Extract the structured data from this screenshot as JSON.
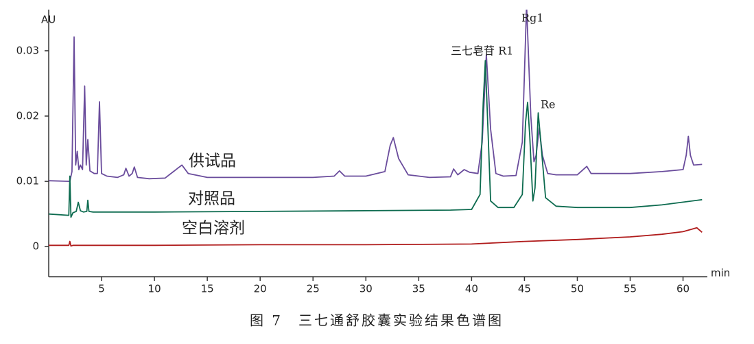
{
  "chart_data": {
    "type": "line",
    "caption": "图 7　三七通舒胶囊实验结果色谱图",
    "y_label": "AU",
    "x_label": "min",
    "xlim": [
      0,
      62.3
    ],
    "ylim": [
      -0.0046,
      0.0363
    ],
    "xticks": [
      5,
      10,
      15,
      20,
      25,
      30,
      35,
      40,
      45,
      50,
      55,
      60
    ],
    "yticks": [
      0,
      0.01,
      0.02,
      0.03
    ],
    "annotations": [
      "三七皂苷 R1",
      "Rg1",
      "Re"
    ],
    "series": [
      {
        "name": "供试品",
        "color": "#6a4c9c",
        "x": [
          0,
          2.0,
          2.2,
          2.4,
          2.55,
          2.7,
          2.85,
          3.0,
          3.2,
          3.4,
          3.55,
          3.7,
          3.9,
          4.3,
          4.6,
          4.8,
          5.0,
          5.5,
          6.5,
          7.1,
          7.3,
          7.6,
          7.9,
          8.1,
          8.4,
          9.5,
          11,
          12.2,
          12.6,
          13.2,
          15,
          20,
          25,
          27,
          27.5,
          28,
          30,
          31.8,
          32.3,
          32.6,
          33.1,
          34,
          36,
          38,
          38.3,
          38.7,
          39.3,
          39.8,
          40.6,
          41.0,
          41.4,
          41.8,
          42.3,
          43,
          44.2,
          44.8,
          45.2,
          45.6,
          45.9,
          46.1,
          46.4,
          46.7,
          47.2,
          48,
          50,
          50.9,
          51.3,
          55,
          58,
          60,
          60.3,
          60.5,
          60.7,
          61,
          61.8
        ],
        "values": [
          0.0101,
          0.01,
          0.0115,
          0.0321,
          0.0125,
          0.0146,
          0.0118,
          0.0125,
          0.0118,
          0.0246,
          0.0125,
          0.0164,
          0.0116,
          0.0112,
          0.0112,
          0.0222,
          0.0112,
          0.0108,
          0.0106,
          0.011,
          0.012,
          0.0108,
          0.0112,
          0.0122,
          0.0106,
          0.0104,
          0.0105,
          0.012,
          0.0125,
          0.0112,
          0.0106,
          0.0106,
          0.0106,
          0.0108,
          0.0116,
          0.0108,
          0.0108,
          0.0115,
          0.0155,
          0.0167,
          0.0135,
          0.011,
          0.0106,
          0.0107,
          0.0119,
          0.011,
          0.0118,
          0.0114,
          0.0112,
          0.016,
          0.0294,
          0.018,
          0.0112,
          0.0108,
          0.0109,
          0.016,
          0.037,
          0.02,
          0.013,
          0.014,
          0.0182,
          0.014,
          0.0112,
          0.011,
          0.011,
          0.0123,
          0.0112,
          0.0112,
          0.0115,
          0.0118,
          0.014,
          0.0169,
          0.014,
          0.0125,
          0.0126
        ]
      },
      {
        "name": "对照品",
        "color": "#0d6b4f",
        "x": [
          0,
          1.9,
          2.0,
          2.1,
          2.3,
          2.6,
          2.8,
          3.0,
          3.3,
          3.6,
          3.7,
          3.8,
          4.2,
          10,
          20,
          30,
          38,
          40,
          40.8,
          41.1,
          41.3,
          41.5,
          41.8,
          42.5,
          44,
          44.8,
          45.1,
          45.3,
          45.5,
          45.8,
          46.0,
          46.3,
          46.6,
          47,
          48,
          50,
          55,
          58,
          61.8
        ],
        "values": [
          0.005,
          0.0048,
          0.0108,
          0.0045,
          0.0052,
          0.0054,
          0.0068,
          0.0055,
          0.0053,
          0.0054,
          0.0071,
          0.0054,
          0.0053,
          0.0053,
          0.0054,
          0.0055,
          0.0056,
          0.0057,
          0.008,
          0.022,
          0.0285,
          0.02,
          0.007,
          0.006,
          0.006,
          0.008,
          0.019,
          0.0221,
          0.017,
          0.007,
          0.009,
          0.0205,
          0.015,
          0.0075,
          0.0062,
          0.006,
          0.006,
          0.0064,
          0.0072
        ]
      },
      {
        "name": "空白溶剂",
        "color": "#b01c1c",
        "x": [
          0,
          1.9,
          2.0,
          2.1,
          2.3,
          10,
          20,
          30,
          40,
          45,
          50,
          55,
          58,
          60,
          61.3,
          61.8
        ],
        "values": [
          0.0002,
          0.0002,
          0.0008,
          0.0001,
          0.0002,
          0.0002,
          0.0003,
          0.0003,
          0.0004,
          0.0008,
          0.0011,
          0.0015,
          0.0019,
          0.0023,
          0.0029,
          0.0022
        ]
      }
    ]
  }
}
